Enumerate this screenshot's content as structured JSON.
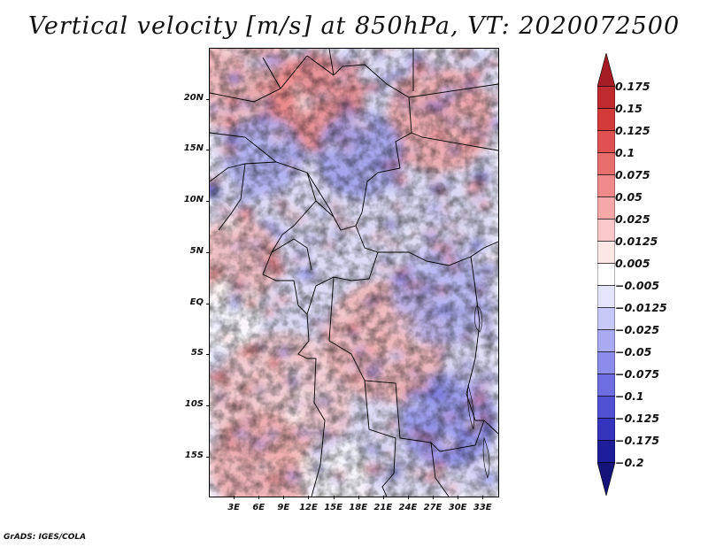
{
  "title": "Vertical velocity [m/s] at 850hPa, VT: 2020072500",
  "lat_labels": [
    "20N",
    "15N",
    "10N",
    "5N",
    "EQ",
    "5S",
    "10S",
    "15S"
  ],
  "lon_labels": [
    "3E",
    "6E",
    "9E",
    "12E",
    "15E",
    "18E",
    "21E",
    "24E",
    "27E",
    "30E",
    "33E"
  ],
  "legend": {
    "levels": [
      "0.175",
      "0.15",
      "0.125",
      "0.1",
      "0.075",
      "0.05",
      "0.025",
      "0.0125",
      "0.005",
      "-0.005",
      "-0.0125",
      "-0.025",
      "-0.05",
      "-0.075",
      "-0.1",
      "-0.125",
      "-0.175",
      "-0.2"
    ],
    "colors": [
      "#a51c24",
      "#bf2a2e",
      "#d33a3a",
      "#e05252",
      "#e86e6e",
      "#f08a8a",
      "#f5a8a8",
      "#fac8c8",
      "#fde6e6",
      "#ffffff",
      "#e4e4fc",
      "#c8c8f8",
      "#aaaaf2",
      "#8c8cea",
      "#6e6ee0",
      "#5050d2",
      "#3434bc",
      "#1e1e9a",
      "#14147a"
    ]
  },
  "map": {
    "lat_range": [
      -19,
      25
    ],
    "lon_range": [
      0,
      35
    ],
    "field": "vertical velocity at 850hPa",
    "valid_time": "2020072500",
    "borders_color": "#000000"
  },
  "footer": "GrADS: IGES/COLA"
}
